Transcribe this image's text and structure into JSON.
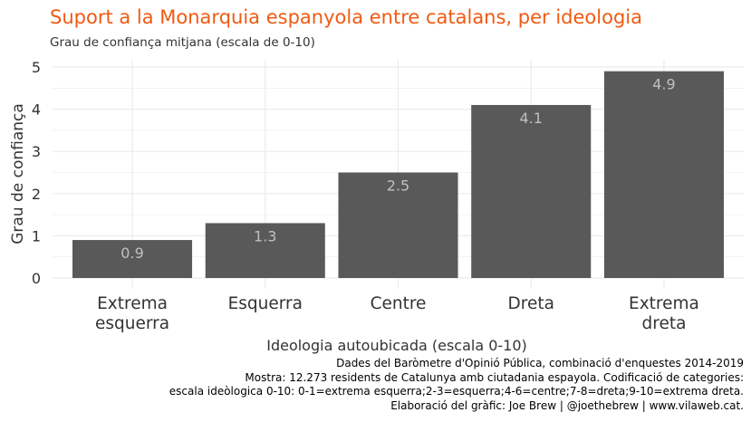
{
  "chart_data": {
    "type": "bar",
    "title": "Suport a la Monarquia espanyola entre catalans, per ideologia",
    "subtitle": "Grau de confiança mitjana (escala de 0-10)",
    "xlabel": "Ideologia autoubicada (escala 0-10)",
    "ylabel": "Grau de confiança",
    "categories": [
      [
        "Extrema",
        "esquerra"
      ],
      [
        "Esquerra"
      ],
      [
        "Centre"
      ],
      [
        "Dreta"
      ],
      [
        "Extrema",
        "dreta"
      ]
    ],
    "values": [
      0.9,
      1.3,
      2.5,
      4.1,
      4.9
    ],
    "data_labels": [
      "0.9",
      "1.3",
      "2.5",
      "4.1",
      "4.9"
    ],
    "ylim": [
      0,
      5
    ],
    "yticks": [
      "0",
      "1",
      "2",
      "3",
      "4",
      "5"
    ],
    "grid": true,
    "bar_color": "#595959",
    "label_color": "#c0c0c0",
    "grid_color": "#ebebeb"
  },
  "caption": [
    "Dades del Baròmetre d'Opinió Pública, combinació d'enquestes 2014-2019",
    "Mostra: 12.273 residents de Catalunya amb ciutadania espayola. Codificació de categories:",
    "escala ideòlogica 0-10: 0-1=extrema esquerra;2-3=esquerra;4-6=centre;7-8=dreta;9-10=extrema dreta.",
    "Elaboració del gràfic: Joe Brew | @joethebrew | www.vilaweb.cat."
  ]
}
